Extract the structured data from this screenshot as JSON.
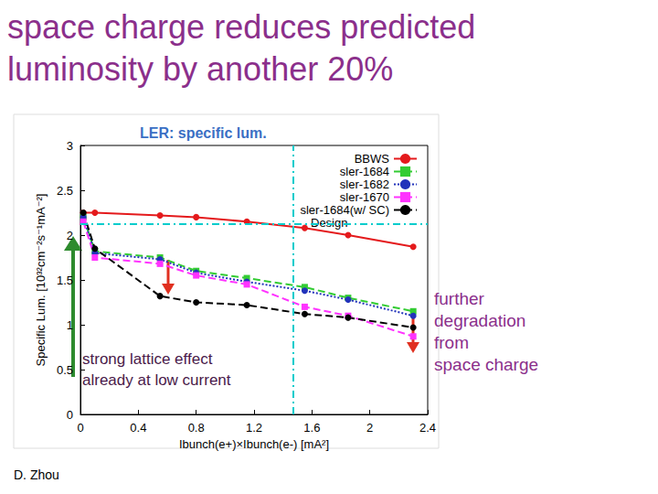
{
  "slide": {
    "title": "space charge reduces predicted\nluminosity by another 20%",
    "credit": "D. Zhou"
  },
  "chart_data": {
    "type": "line",
    "title": "LER: specific lum.",
    "x_label": "Ibunch(e+)×Ibunch(e-) [mA²]",
    "y_label": "Specific Lum. [10³²cm⁻²s⁻¹mA⁻²]",
    "x": [
      0.02,
      0.1,
      0.55,
      0.8,
      1.15,
      1.55,
      1.85,
      2.3
    ],
    "series": [
      {
        "name": "BBWS",
        "color": "#e41a1c",
        "marker": "circle",
        "line_style": "solid",
        "values": [
          2.25,
          2.25,
          2.22,
          2.2,
          2.15,
          2.08,
          2.0,
          1.87
        ]
      },
      {
        "name": "sler-1684",
        "color": "#33cc33",
        "marker": "rect",
        "line_style": "dashed",
        "values": [
          2.2,
          1.82,
          1.75,
          1.6,
          1.52,
          1.42,
          1.3,
          1.15
        ]
      },
      {
        "name": "sler-1682",
        "color": "#2233bb",
        "marker": "circle",
        "line_style": "dotted",
        "values": [
          2.2,
          1.8,
          1.73,
          1.58,
          1.48,
          1.38,
          1.28,
          1.1
        ]
      },
      {
        "name": "sler-1670",
        "color": "#ff33ff",
        "marker": "rect",
        "line_style": "dashed",
        "values": [
          2.15,
          1.75,
          1.68,
          1.55,
          1.45,
          1.2,
          1.1,
          0.87
        ]
      },
      {
        "name": "sler-1684(w/ SC)",
        "color": "#000000",
        "marker": "circle",
        "line_style": "dashed",
        "values": [
          2.25,
          1.85,
          1.32,
          1.25,
          1.22,
          1.12,
          1.08,
          0.97
        ]
      }
    ],
    "design": {
      "label": "Design",
      "x": 1.47,
      "y": 2.12,
      "color": "#00cccc"
    },
    "annotations": [
      "strong lattice effect\nalready at low current",
      "further\ndegradation\nfrom\nspace charge"
    ],
    "xlim": [
      0,
      2.4
    ],
    "xticks": [
      0,
      0.4,
      0.8,
      1.2,
      1.6,
      2,
      2.4
    ],
    "ylim": [
      0,
      3
    ],
    "yticks": [
      0,
      0.5,
      1,
      1.5,
      2,
      2.5,
      3
    ],
    "grid": false,
    "legend": "top-right"
  }
}
